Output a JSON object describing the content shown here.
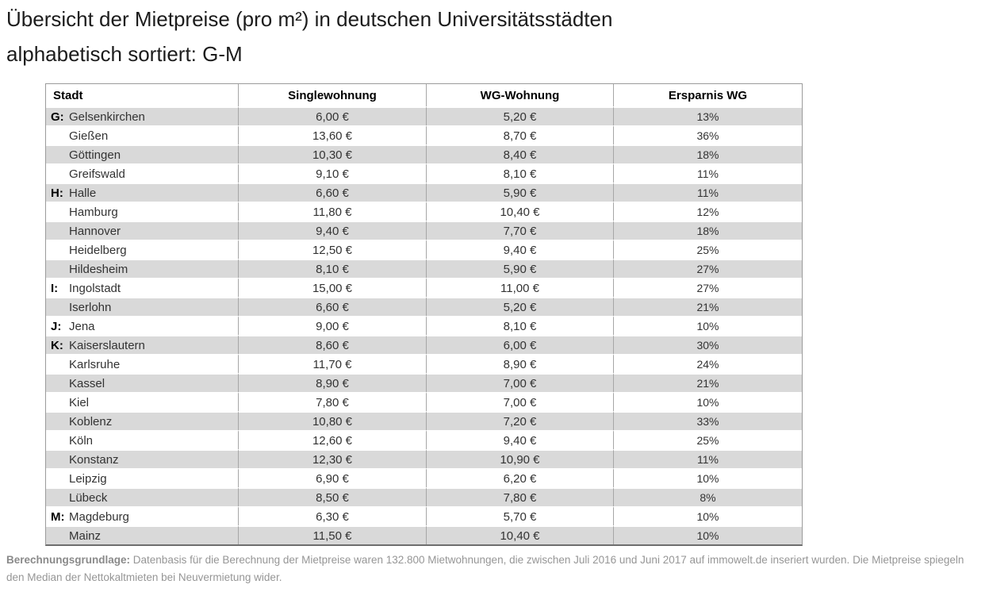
{
  "title": {
    "line1": "Übersicht der Mietpreise (pro m²) in deutschen Universitätsstädten",
    "line2": "alphabetisch sortiert: G-M"
  },
  "table": {
    "headers": [
      "Stadt",
      "Singlewohnung",
      "WG-Wohnung",
      "Ersparnis WG"
    ],
    "rows": [
      {
        "letter": "G:",
        "city": "Gelsenkirchen",
        "single": "6,00 €",
        "wg": "5,20 €",
        "savings": "13%"
      },
      {
        "letter": "",
        "city": "Gießen",
        "single": "13,60 €",
        "wg": "8,70 €",
        "savings": "36%"
      },
      {
        "letter": "",
        "city": "Göttingen",
        "single": "10,30 €",
        "wg": "8,40 €",
        "savings": "18%"
      },
      {
        "letter": "",
        "city": "Greifswald",
        "single": "9,10 €",
        "wg": "8,10 €",
        "savings": "11%"
      },
      {
        "letter": "H:",
        "city": "Halle",
        "single": "6,60 €",
        "wg": "5,90 €",
        "savings": "11%"
      },
      {
        "letter": "",
        "city": "Hamburg",
        "single": "11,80 €",
        "wg": "10,40 €",
        "savings": "12%"
      },
      {
        "letter": "",
        "city": "Hannover",
        "single": "9,40 €",
        "wg": "7,70 €",
        "savings": "18%"
      },
      {
        "letter": "",
        "city": "Heidelberg",
        "single": "12,50 €",
        "wg": "9,40 €",
        "savings": "25%"
      },
      {
        "letter": "",
        "city": "Hildesheim",
        "single": "8,10 €",
        "wg": "5,90 €",
        "savings": "27%"
      },
      {
        "letter": "I:",
        "city": "Ingolstadt",
        "single": "15,00 €",
        "wg": "11,00 €",
        "savings": "27%"
      },
      {
        "letter": "",
        "city": "Iserlohn",
        "single": "6,60 €",
        "wg": "5,20 €",
        "savings": "21%"
      },
      {
        "letter": "J:",
        "city": "Jena",
        "single": "9,00 €",
        "wg": "8,10 €",
        "savings": "10%"
      },
      {
        "letter": "K:",
        "city": "Kaiserslautern",
        "single": "8,60 €",
        "wg": "6,00 €",
        "savings": "30%"
      },
      {
        "letter": "",
        "city": "Karlsruhe",
        "single": "11,70 €",
        "wg": "8,90 €",
        "savings": "24%"
      },
      {
        "letter": "",
        "city": "Kassel",
        "single": "8,90 €",
        "wg": "7,00 €",
        "savings": "21%"
      },
      {
        "letter": "",
        "city": "Kiel",
        "single": "7,80 €",
        "wg": "7,00 €",
        "savings": "10%"
      },
      {
        "letter": "",
        "city": "Koblenz",
        "single": "10,80 €",
        "wg": "7,20 €",
        "savings": "33%"
      },
      {
        "letter": "",
        "city": "Köln",
        "single": "12,60 €",
        "wg": "9,40 €",
        "savings": "25%"
      },
      {
        "letter": "",
        "city": "Konstanz",
        "single": "12,30 €",
        "wg": "10,90 €",
        "savings": "11%"
      },
      {
        "letter": "",
        "city": "Leipzig",
        "single": "6,90 €",
        "wg": "6,20 €",
        "savings": "10%"
      },
      {
        "letter": "",
        "city": "Lübeck",
        "single": "8,50 €",
        "wg": "7,80 €",
        "savings": "8%"
      },
      {
        "letter": "M:",
        "city": "Magdeburg",
        "single": "6,30 €",
        "wg": "5,70 €",
        "savings": "10%"
      },
      {
        "letter": "",
        "city": "Mainz",
        "single": "11,50 €",
        "wg": "10,40 €",
        "savings": "10%"
      }
    ]
  },
  "footer": {
    "label": "Berechnungsgrundlage:",
    "text": "Datenbasis für die Berechnung der Mietpreise waren 132.800 Mietwohnungen, die zwischen Juli 2016 und Juni 2017 auf immowelt.de inseriert wurden. Die Mietpreise spiegeln den Median der Nettokaltmieten bei Neuvermietung wider."
  },
  "colors": {
    "row_alt": "#d9d9d9",
    "column_border": "#a6a6a6",
    "outer_border": "#9b9b9b",
    "bottom_border": "#6e6e6e",
    "footer_text": "#969696",
    "table_text": "#333333"
  },
  "chart_data": {
    "type": "table",
    "title": "Übersicht der Mietpreise (pro m²) in deutschen Universitätsstädten, alphabetisch sortiert: G-M",
    "columns": [
      "Stadt",
      "Singlewohnung (€/m²)",
      "WG-Wohnung (€/m²)",
      "Ersparnis WG (%)"
    ],
    "categories": [
      "Gelsenkirchen",
      "Gießen",
      "Göttingen",
      "Greifswald",
      "Halle",
      "Hamburg",
      "Hannover",
      "Heidelberg",
      "Hildesheim",
      "Ingolstadt",
      "Iserlohn",
      "Jena",
      "Kaiserslautern",
      "Karlsruhe",
      "Kassel",
      "Kiel",
      "Koblenz",
      "Köln",
      "Konstanz",
      "Leipzig",
      "Lübeck",
      "Magdeburg",
      "Mainz"
    ],
    "series": [
      {
        "name": "Singlewohnung",
        "values": [
          6.0,
          13.6,
          10.3,
          9.1,
          6.6,
          11.8,
          9.4,
          12.5,
          8.1,
          15.0,
          6.6,
          9.0,
          8.6,
          11.7,
          8.9,
          7.8,
          10.8,
          12.6,
          12.3,
          6.9,
          8.5,
          6.3,
          11.5
        ]
      },
      {
        "name": "WG-Wohnung",
        "values": [
          5.2,
          8.7,
          8.4,
          8.1,
          5.9,
          10.4,
          7.7,
          9.4,
          5.9,
          11.0,
          5.2,
          8.1,
          6.0,
          8.9,
          7.0,
          7.0,
          7.2,
          9.4,
          10.9,
          6.2,
          7.8,
          5.7,
          10.4
        ]
      },
      {
        "name": "Ersparnis WG",
        "values": [
          13,
          36,
          18,
          11,
          11,
          12,
          18,
          25,
          27,
          27,
          21,
          10,
          30,
          24,
          21,
          10,
          33,
          25,
          11,
          10,
          8,
          10,
          10
        ]
      }
    ],
    "notes": "Datenbasis: 132.800 Mietwohnungen, Juli 2016 bis Juni 2017, immowelt.de; Median der Nettokaltmieten bei Neuvermietung."
  }
}
